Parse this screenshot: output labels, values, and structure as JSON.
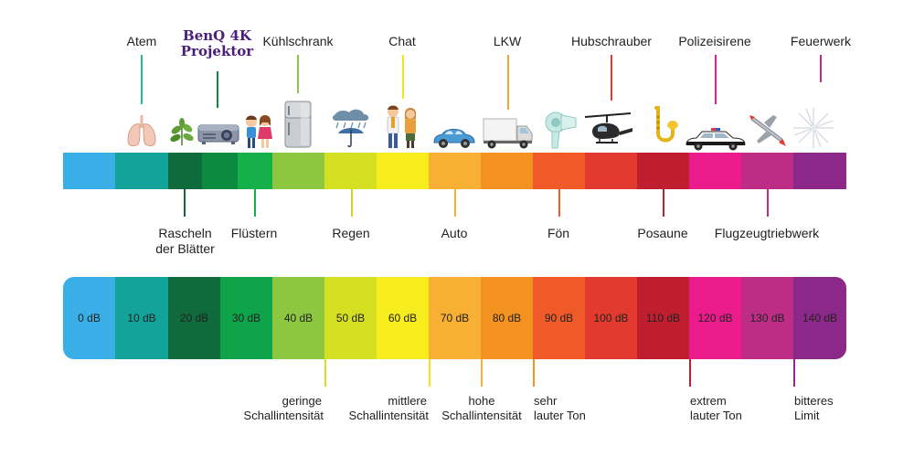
{
  "brand": {
    "line1": "BenQ 4K",
    "line2": "Projektor"
  },
  "top_labels": [
    "Atem",
    "Kühlschrank",
    "Chat",
    "LKW",
    "Hubschrauber",
    "Polizeisirene",
    "Feuerwerk"
  ],
  "mid_labels": {
    "rascheln_1": "Rascheln",
    "rascheln_2": "der Blätter",
    "fluestern": "Flüstern",
    "regen": "Regen",
    "auto": "Auto",
    "foen": "Fön",
    "posaune": "Posaune",
    "flugzeug": "Flugzeugtriebwerk"
  },
  "scale": [
    "0 dB",
    "10 dB",
    "20 dB",
    "30 dB",
    "40 dB",
    "50 dB",
    "60 dB",
    "70 dB",
    "80 dB",
    "90 dB",
    "100 dB",
    "110 dB",
    "120 dB",
    "130 dB",
    "140 dB"
  ],
  "bottom_labels": {
    "gering_1": "geringe",
    "gering_2": "Schallintensität",
    "mittlere_1": "mittlere",
    "mittlere_2": "Schallintensität",
    "hohe_1": "hohe",
    "hohe_2": "Schallintensität",
    "sehr_1": "sehr",
    "sehr_2": "lauter Ton",
    "extrem_1": "extrem",
    "extrem_2": "lauter Ton",
    "bitter_1": "bitteres",
    "bitter_2": "Limit"
  },
  "colors": [
    "#3aaee6",
    "#14a39a",
    "#0f6b3c",
    "#0c8a40",
    "#16b04b",
    "#8dc63f",
    "#d6e022",
    "#f7ec1d",
    "#f7b033",
    "#f39220",
    "#f05a28",
    "#e23a2e",
    "#bf1e2e",
    "#ec1b8b",
    "#bd2d85",
    "#8b2889"
  ],
  "icons": [
    "lungs-icon",
    "leaf-icon",
    "projector-icon",
    "children-icon",
    "fridge-icon",
    "rain-umbrella-icon",
    "people-chat-icon",
    "car-icon",
    "truck-icon",
    "hairdryer-icon",
    "helicopter-icon",
    "trombone-icon",
    "police-car-icon",
    "jet-icon",
    "firework-icon"
  ]
}
